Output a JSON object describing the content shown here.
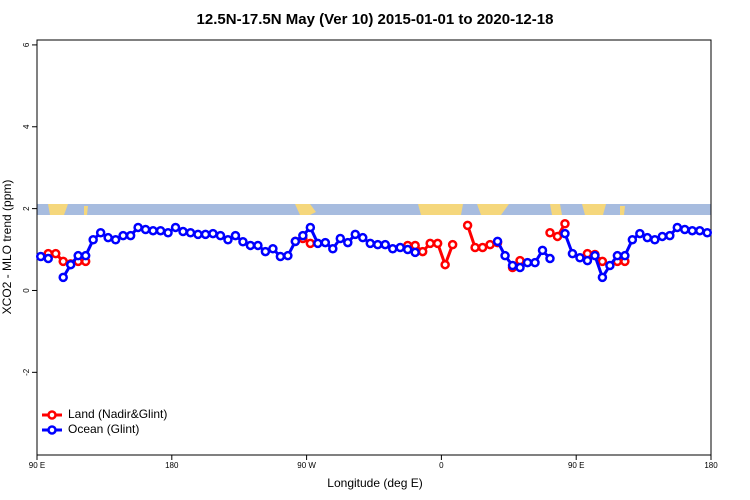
{
  "chart_data": {
    "type": "line",
    "title": "12.5N-17.5N May (Ver 10)   2015-01-01 to 2020-12-18",
    "xlabel": "Longitude (deg E)",
    "ylabel": "XCO2 - MLO trend (ppm)",
    "x": [
      92.5,
      97.5,
      102.5,
      107.5,
      112.5,
      117.5,
      122.5,
      127.5,
      132.5,
      137.5,
      142.5,
      147.5,
      152.5,
      157.5,
      162.5,
      167.5,
      172.5,
      177.5,
      182.5,
      187.5,
      192.5,
      197.5,
      202.5,
      207.5,
      212.5,
      217.5,
      222.5,
      227.5,
      232.5,
      237.5,
      242.5,
      247.5,
      252.5,
      257.5,
      262.5,
      267.5,
      272.5,
      277.5,
      282.5,
      287.5,
      292.5,
      297.5,
      302.5,
      307.5,
      312.5,
      317.5,
      322.5,
      327.5,
      332.5,
      337.5,
      342.5,
      347.5,
      352.5,
      357.5,
      362.5,
      367.5,
      372.5,
      377.5,
      382.5,
      387.5,
      392.5,
      397.5,
      402.5,
      407.5,
      412.5,
      417.5,
      422.5,
      427.5,
      432.5,
      437.5,
      442.5,
      447.5,
      452.5,
      457.5,
      462.5,
      467.5,
      472.5,
      477.5,
      482.5,
      487.5,
      492.5,
      497.5,
      502.5,
      507.5,
      512.5,
      517.5,
      522.5,
      527.5,
      532.5,
      537.5
    ],
    "series": [
      {
        "name": "Land (Nadir&Glint)",
        "color": "#ff0000",
        "values": [
          null,
          0.9,
          0.9,
          0.71,
          0.65,
          0.71,
          0.71,
          null,
          null,
          null,
          null,
          null,
          null,
          null,
          null,
          null,
          null,
          null,
          null,
          null,
          null,
          null,
          null,
          null,
          null,
          null,
          null,
          null,
          null,
          null,
          null,
          null,
          null,
          null,
          1.2,
          1.27,
          1.15,
          null,
          null,
          null,
          null,
          null,
          null,
          null,
          null,
          null,
          null,
          null,
          null,
          1.1,
          1.1,
          0.95,
          1.15,
          1.15,
          0.63,
          1.12,
          null,
          1.59,
          1.05,
          1.05,
          1.12,
          1.17,
          null,
          0.56,
          0.73,
          null,
          null,
          null,
          1.41,
          1.32,
          1.63,
          null,
          null,
          0.9,
          0.88,
          0.71,
          null,
          0.71,
          0.71,
          null,
          null,
          null,
          null,
          null,
          null,
          null,
          null,
          null,
          null,
          null
        ]
      },
      {
        "name": "Ocean (Glint)",
        "color": "#0000ff",
        "values": [
          0.83,
          0.78,
          null,
          0.32,
          0.63,
          0.85,
          0.85,
          1.24,
          1.41,
          1.29,
          1.24,
          1.34,
          1.34,
          1.54,
          1.49,
          1.46,
          1.46,
          1.41,
          1.54,
          1.44,
          1.41,
          1.37,
          1.37,
          1.39,
          1.34,
          1.24,
          1.34,
          1.19,
          1.1,
          1.1,
          0.95,
          1.02,
          0.83,
          0.85,
          1.2,
          1.34,
          1.54,
          1.15,
          1.17,
          1.02,
          1.27,
          1.17,
          1.37,
          1.29,
          1.15,
          1.12,
          1.12,
          1.02,
          1.05,
          1.0,
          0.93,
          null,
          null,
          null,
          null,
          null,
          null,
          null,
          null,
          null,
          null,
          1.2,
          0.85,
          0.61,
          0.56,
          0.68,
          0.68,
          0.98,
          0.78,
          null,
          1.39,
          0.9,
          0.8,
          0.73,
          0.85,
          0.32,
          0.61,
          0.85,
          0.85,
          1.24,
          1.39,
          1.29,
          1.24,
          1.32,
          1.34,
          1.54,
          1.49,
          1.46,
          1.46,
          1.41
        ]
      }
    ],
    "xlim": [
      90,
      540
    ],
    "ylim": [
      -4.02,
      6.12
    ],
    "xticks": [
      {
        "value": 90,
        "label": "90 E"
      },
      180,
      {
        "value": 270,
        "label": "90 W"
      },
      {
        "value": 360,
        "label": "0"
      },
      {
        "value": 450,
        "label": "90 E"
      },
      {
        "value": 540,
        "label": "180"
      }
    ],
    "yticks": [
      -2,
      0,
      2,
      4,
      6
    ],
    "legend": "bottomleft"
  }
}
